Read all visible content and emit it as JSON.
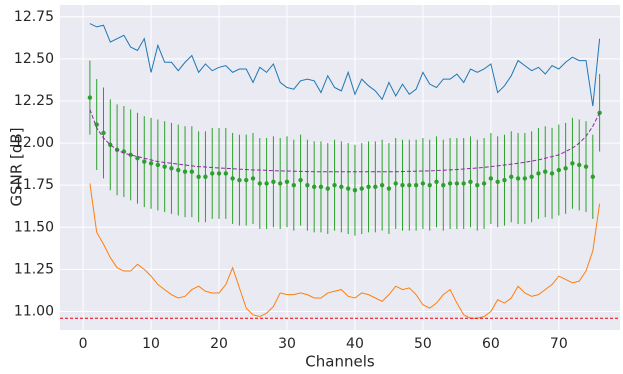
{
  "chart_data": {
    "type": "line",
    "x_label": "Channels",
    "y_label": "GSNR [dB]",
    "xlim": [
      -3.4,
      79
    ],
    "ylim": [
      10.89,
      12.82
    ],
    "xticks": [
      0,
      10,
      20,
      30,
      40,
      50,
      60,
      70
    ],
    "yticks": [
      {
        "value": 11,
        "label": "11.00"
      },
      11.25,
      {
        "value": 11.5,
        "label": "11.50"
      },
      11.75,
      {
        "value": 12,
        "label": "12.00"
      },
      12.25,
      {
        "value": 12.5,
        "label": "12.50"
      },
      12.75
    ],
    "grid": true,
    "background": "#eaeaf2",
    "x": [
      1,
      2,
      3,
      4,
      5,
      6,
      7,
      8,
      9,
      10,
      11,
      12,
      13,
      14,
      15,
      16,
      17,
      18,
      19,
      20,
      21,
      22,
      23,
      24,
      25,
      26,
      27,
      28,
      29,
      30,
      31,
      32,
      33,
      34,
      35,
      36,
      37,
      38,
      39,
      40,
      41,
      42,
      43,
      44,
      45,
      46,
      47,
      48,
      49,
      50,
      51,
      52,
      53,
      54,
      55,
      56,
      57,
      58,
      59,
      60,
      61,
      62,
      63,
      64,
      65,
      66,
      67,
      68,
      69,
      70,
      71,
      72,
      73,
      74,
      75,
      76
    ],
    "hline": {
      "value": 10.96,
      "color": "#e8000b",
      "linestyle": "dashed"
    },
    "series": [
      {
        "color": "#1f77b4",
        "linestyle": "solid",
        "values": [
          12.71,
          12.69,
          12.7,
          12.6,
          12.62,
          12.64,
          12.57,
          12.55,
          12.62,
          12.42,
          12.58,
          12.48,
          12.48,
          12.43,
          12.48,
          12.52,
          12.42,
          12.47,
          12.43,
          12.45,
          12.46,
          12.42,
          12.44,
          12.44,
          12.36,
          12.45,
          12.42,
          12.47,
          12.36,
          12.33,
          12.32,
          12.37,
          12.38,
          12.37,
          12.3,
          12.4,
          12.33,
          12.31,
          12.42,
          12.29,
          12.38,
          12.34,
          12.31,
          12.26,
          12.36,
          12.28,
          12.35,
          12.29,
          12.32,
          12.42,
          12.35,
          12.33,
          12.38,
          12.38,
          12.41,
          12.36,
          12.44,
          12.42,
          12.44,
          12.47,
          12.3,
          12.34,
          12.4,
          12.49,
          12.46,
          12.43,
          12.45,
          12.41,
          12.46,
          12.44,
          12.48,
          12.51,
          12.49,
          12.49,
          12.22,
          12.62
        ]
      },
      {
        "color": "#ff7f0e",
        "linestyle": "solid",
        "values": [
          11.76,
          11.47,
          11.4,
          11.32,
          11.26,
          11.24,
          11.24,
          11.28,
          11.25,
          11.21,
          11.16,
          11.13,
          11.1,
          11.08,
          11.09,
          11.13,
          11.15,
          11.12,
          11.11,
          11.11,
          11.16,
          11.26,
          11.14,
          11.02,
          10.98,
          10.97,
          10.99,
          11.03,
          11.11,
          11.1,
          11.1,
          11.11,
          11.1,
          11.08,
          11.08,
          11.11,
          11.12,
          11.13,
          11.09,
          11.08,
          11.11,
          11.1,
          11.08,
          11.06,
          11.1,
          11.15,
          11.13,
          11.14,
          11.1,
          11.04,
          11.02,
          11.05,
          11.1,
          11.13,
          11.05,
          10.98,
          10.96,
          10.96,
          10.97,
          11.0,
          11.07,
          11.05,
          11.08,
          11.15,
          11.11,
          11.09,
          11.1,
          11.13,
          11.16,
          11.21,
          11.19,
          11.17,
          11.18,
          11.24,
          11.36,
          11.64
        ]
      },
      {
        "color": "#2ca02c",
        "linestyle": "none",
        "marker": "o",
        "values": [
          12.27,
          12.11,
          12.06,
          11.99,
          11.96,
          11.95,
          11.93,
          11.91,
          11.89,
          11.88,
          11.87,
          11.86,
          11.85,
          11.84,
          11.83,
          11.83,
          11.8,
          11.8,
          11.82,
          11.82,
          11.82,
          11.79,
          11.78,
          11.78,
          11.79,
          11.76,
          11.76,
          11.77,
          11.76,
          11.77,
          11.75,
          11.78,
          11.75,
          11.74,
          11.74,
          11.73,
          11.75,
          11.74,
          11.73,
          11.72,
          11.73,
          11.74,
          11.74,
          11.75,
          11.73,
          11.76,
          11.75,
          11.75,
          11.75,
          11.76,
          11.75,
          11.77,
          11.75,
          11.76,
          11.76,
          11.76,
          11.77,
          11.75,
          11.76,
          11.79,
          11.77,
          11.78,
          11.8,
          11.79,
          11.79,
          11.8,
          11.82,
          11.83,
          11.82,
          11.84,
          11.85,
          11.88,
          11.87,
          11.86,
          11.8,
          12.18
        ],
        "errors": [
          0.22,
          0.27,
          0.27,
          0.27,
          0.27,
          0.27,
          0.27,
          0.27,
          0.27,
          0.27,
          0.27,
          0.27,
          0.27,
          0.27,
          0.27,
          0.27,
          0.27,
          0.27,
          0.27,
          0.27,
          0.27,
          0.27,
          0.27,
          0.27,
          0.27,
          0.27,
          0.27,
          0.27,
          0.27,
          0.27,
          0.27,
          0.27,
          0.27,
          0.27,
          0.27,
          0.27,
          0.27,
          0.27,
          0.27,
          0.27,
          0.27,
          0.27,
          0.27,
          0.27,
          0.27,
          0.27,
          0.27,
          0.27,
          0.27,
          0.27,
          0.27,
          0.27,
          0.27,
          0.27,
          0.27,
          0.27,
          0.27,
          0.27,
          0.27,
          0.27,
          0.27,
          0.27,
          0.27,
          0.27,
          0.27,
          0.27,
          0.27,
          0.27,
          0.27,
          0.27,
          0.27,
          0.27,
          0.27,
          0.27,
          0.25,
          0.23
        ]
      },
      {
        "color": "#8b2b9f",
        "linestyle": "dashed",
        "values": [
          12.2,
          12.09,
          12.03,
          11.99,
          11.96,
          11.94,
          11.93,
          11.92,
          11.91,
          11.9,
          11.89,
          11.885,
          11.88,
          11.875,
          11.87,
          11.865,
          11.86,
          11.858,
          11.855,
          11.852,
          11.85,
          11.848,
          11.845,
          11.843,
          11.84,
          11.84,
          11.838,
          11.836,
          11.835,
          11.834,
          11.833,
          11.832,
          11.831,
          11.83,
          11.83,
          11.83,
          11.83,
          11.83,
          11.83,
          11.83,
          11.83,
          11.83,
          11.83,
          11.83,
          11.83,
          11.83,
          11.831,
          11.832,
          11.833,
          11.834,
          11.835,
          11.837,
          11.839,
          11.841,
          11.843,
          11.846,
          11.849,
          11.852,
          11.856,
          11.86,
          11.865,
          11.87,
          11.875,
          11.88,
          11.886,
          11.893,
          11.9,
          11.91,
          11.92,
          11.93,
          11.95,
          11.97,
          12.0,
          12.04,
          12.1,
          12.18
        ]
      }
    ]
  }
}
